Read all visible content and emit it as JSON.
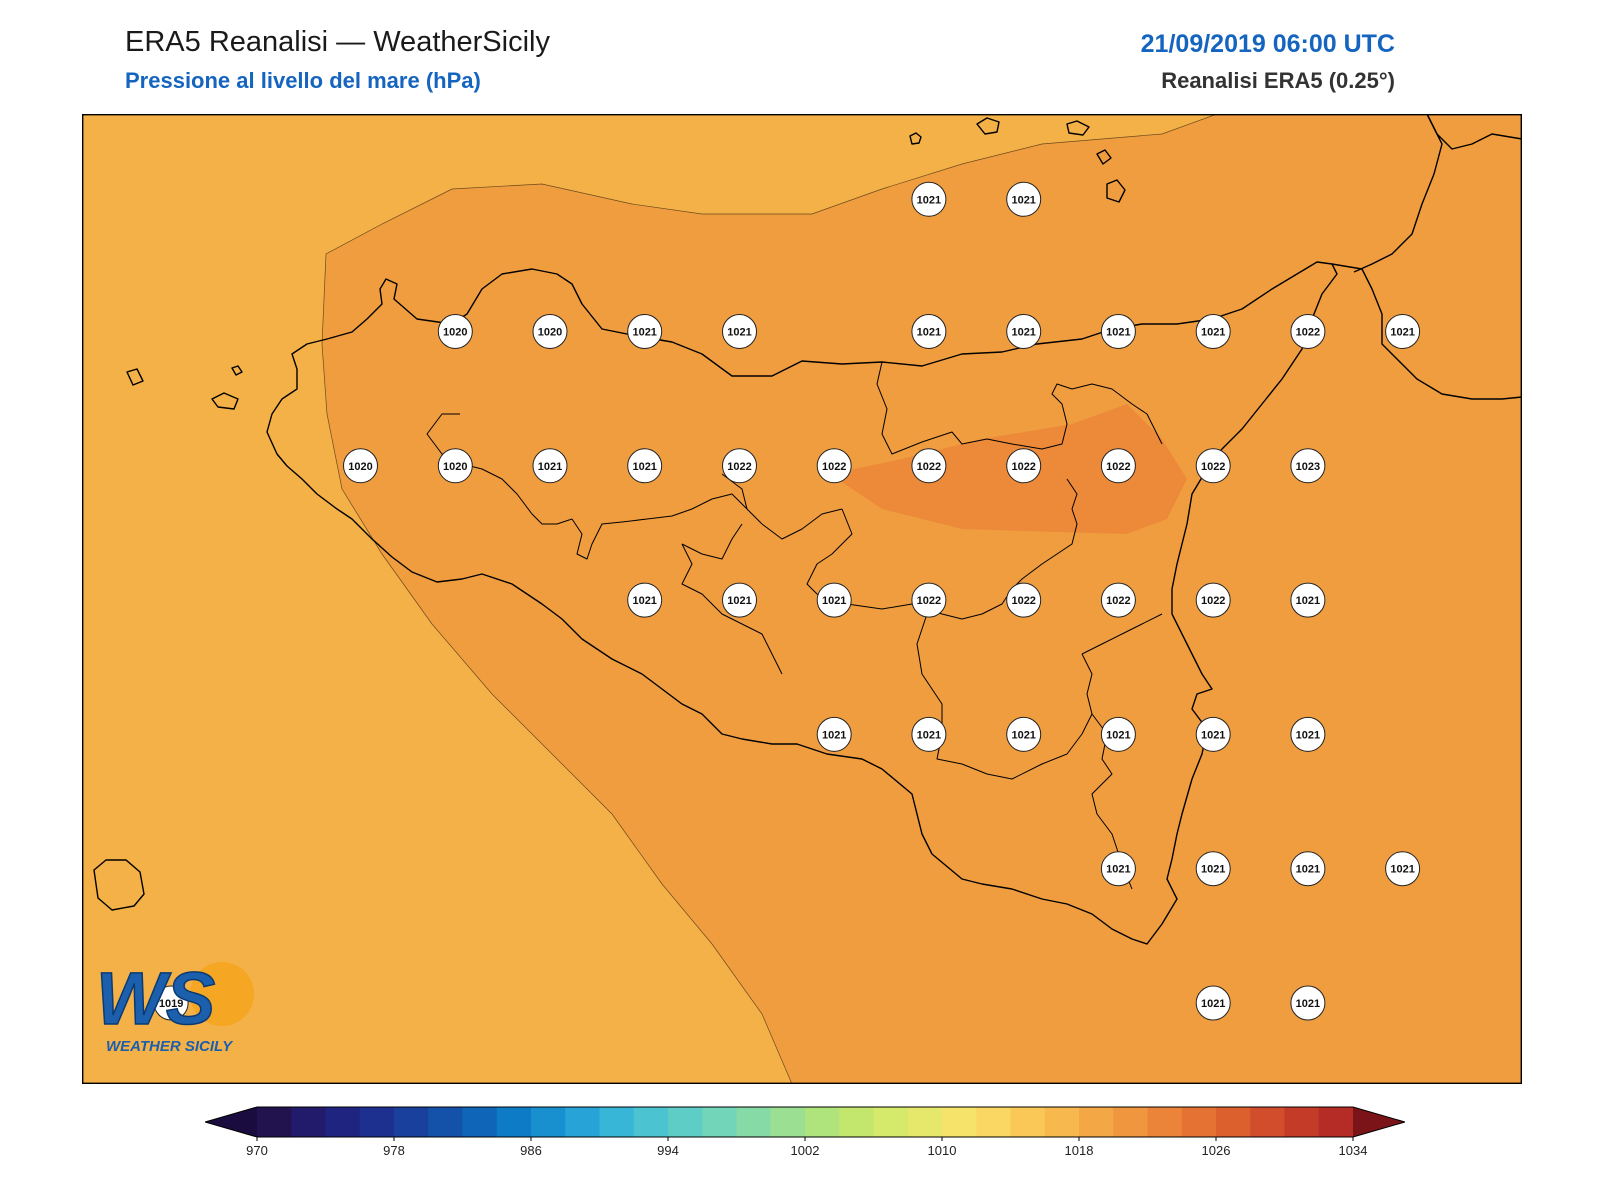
{
  "header": {
    "title": "ERA5 Reanalisi — WeatherSicily",
    "subtitle": "Pressione al livello del mare (hPa)",
    "datetime": "21/09/2019 06:00 UTC",
    "model": "Reanalisi ERA5 (0.25°)"
  },
  "logo": {
    "letters": "WS",
    "caption": "WEATHER SICILY"
  },
  "colorbar": {
    "min": 970,
    "max": 1034,
    "step": 2,
    "tick_labels": [
      "970",
      "978",
      "986",
      "994",
      "1002",
      "1010",
      "1018",
      "1026",
      "1034"
    ],
    "colors": [
      "#22124d",
      "#221a6a",
      "#1f2481",
      "#1d3090",
      "#19409d",
      "#1452aa",
      "#0f66b8",
      "#0e7bc6",
      "#1890d0",
      "#27a3d7",
      "#37b6d8",
      "#4bc3d1",
      "#5ecdc6",
      "#72d4b8",
      "#86daa6",
      "#9adf92",
      "#afe47c",
      "#c3e76d",
      "#d5e96a",
      "#e6e86b",
      "#f5e469",
      "#fad762",
      "#f9c857",
      "#f7b84d",
      "#f4a745",
      "#f0963e",
      "#eb8438",
      "#e57233",
      "#dc5f2e",
      "#d14d2b",
      "#c43c28",
      "#b52b26"
    ],
    "under_color": "#1a0c3e",
    "over_color": "#7a1418"
  },
  "field_colors": {
    "band_1016_1018": "#f4b147",
    "band_1018_1020": "#f09d40",
    "band_1020_1022": "#ec8a3a"
  },
  "chart_data": {
    "type": "heatmap",
    "variable": "Pressione al livello del mare",
    "unit": "hPa",
    "valid_time": "21/09/2019 06:00 UTC",
    "grid_labels": [
      {
        "lon": 14.97,
        "lat": 38.55,
        "value": 1021
      },
      {
        "lon": 15.47,
        "lat": 38.55,
        "value": 1021
      },
      {
        "lon": 12.47,
        "lat": 37.93,
        "value": 1020
      },
      {
        "lon": 12.97,
        "lat": 37.93,
        "value": 1020
      },
      {
        "lon": 13.47,
        "lat": 37.93,
        "value": 1021
      },
      {
        "lon": 13.97,
        "lat": 37.93,
        "value": 1021
      },
      {
        "lon": 14.97,
        "lat": 37.93,
        "value": 1021
      },
      {
        "lon": 15.47,
        "lat": 37.93,
        "value": 1021
      },
      {
        "lon": 15.97,
        "lat": 37.93,
        "value": 1021
      },
      {
        "lon": 16.47,
        "lat": 37.93,
        "value": 1021
      },
      {
        "lon": 16.97,
        "lat": 37.93,
        "value": 1022
      },
      {
        "lon": 17.47,
        "lat": 37.93,
        "value": 1021
      },
      {
        "lon": 11.97,
        "lat": 37.3,
        "value": 1020
      },
      {
        "lon": 12.47,
        "lat": 37.3,
        "value": 1020
      },
      {
        "lon": 12.97,
        "lat": 37.3,
        "value": 1021
      },
      {
        "lon": 13.47,
        "lat": 37.3,
        "value": 1021
      },
      {
        "lon": 13.97,
        "lat": 37.3,
        "value": 1022
      },
      {
        "lon": 14.47,
        "lat": 37.3,
        "value": 1022
      },
      {
        "lon": 14.97,
        "lat": 37.3,
        "value": 1022
      },
      {
        "lon": 15.47,
        "lat": 37.3,
        "value": 1022
      },
      {
        "lon": 15.97,
        "lat": 37.3,
        "value": 1022
      },
      {
        "lon": 16.47,
        "lat": 37.3,
        "value": 1022
      },
      {
        "lon": 16.97,
        "lat": 37.3,
        "value": 1023
      },
      {
        "lon": 13.47,
        "lat": 36.67,
        "value": 1021
      },
      {
        "lon": 13.97,
        "lat": 36.67,
        "value": 1021
      },
      {
        "lon": 14.47,
        "lat": 36.67,
        "value": 1021
      },
      {
        "lon": 14.97,
        "lat": 36.67,
        "value": 1022
      },
      {
        "lon": 15.47,
        "lat": 36.67,
        "value": 1022
      },
      {
        "lon": 15.97,
        "lat": 36.67,
        "value": 1022
      },
      {
        "lon": 16.47,
        "lat": 36.67,
        "value": 1022
      },
      {
        "lon": 16.97,
        "lat": 36.67,
        "value": 1021
      },
      {
        "lon": 14.47,
        "lat": 36.04,
        "value": 1021
      },
      {
        "lon": 14.97,
        "lat": 36.04,
        "value": 1021
      },
      {
        "lon": 15.47,
        "lat": 36.04,
        "value": 1021
      },
      {
        "lon": 15.97,
        "lat": 36.04,
        "value": 1021
      },
      {
        "lon": 16.47,
        "lat": 36.04,
        "value": 1021
      },
      {
        "lon": 16.97,
        "lat": 36.04,
        "value": 1021
      },
      {
        "lon": 15.97,
        "lat": 35.41,
        "value": 1021
      },
      {
        "lon": 16.47,
        "lat": 35.41,
        "value": 1021
      },
      {
        "lon": 16.97,
        "lat": 35.41,
        "value": 1021
      },
      {
        "lon": 17.47,
        "lat": 35.41,
        "value": 1021
      },
      {
        "lon": 10.97,
        "lat": 34.78,
        "value": 1019
      },
      {
        "lon": 16.47,
        "lat": 34.78,
        "value": 1021
      },
      {
        "lon": 16.97,
        "lat": 34.78,
        "value": 1021
      }
    ]
  }
}
